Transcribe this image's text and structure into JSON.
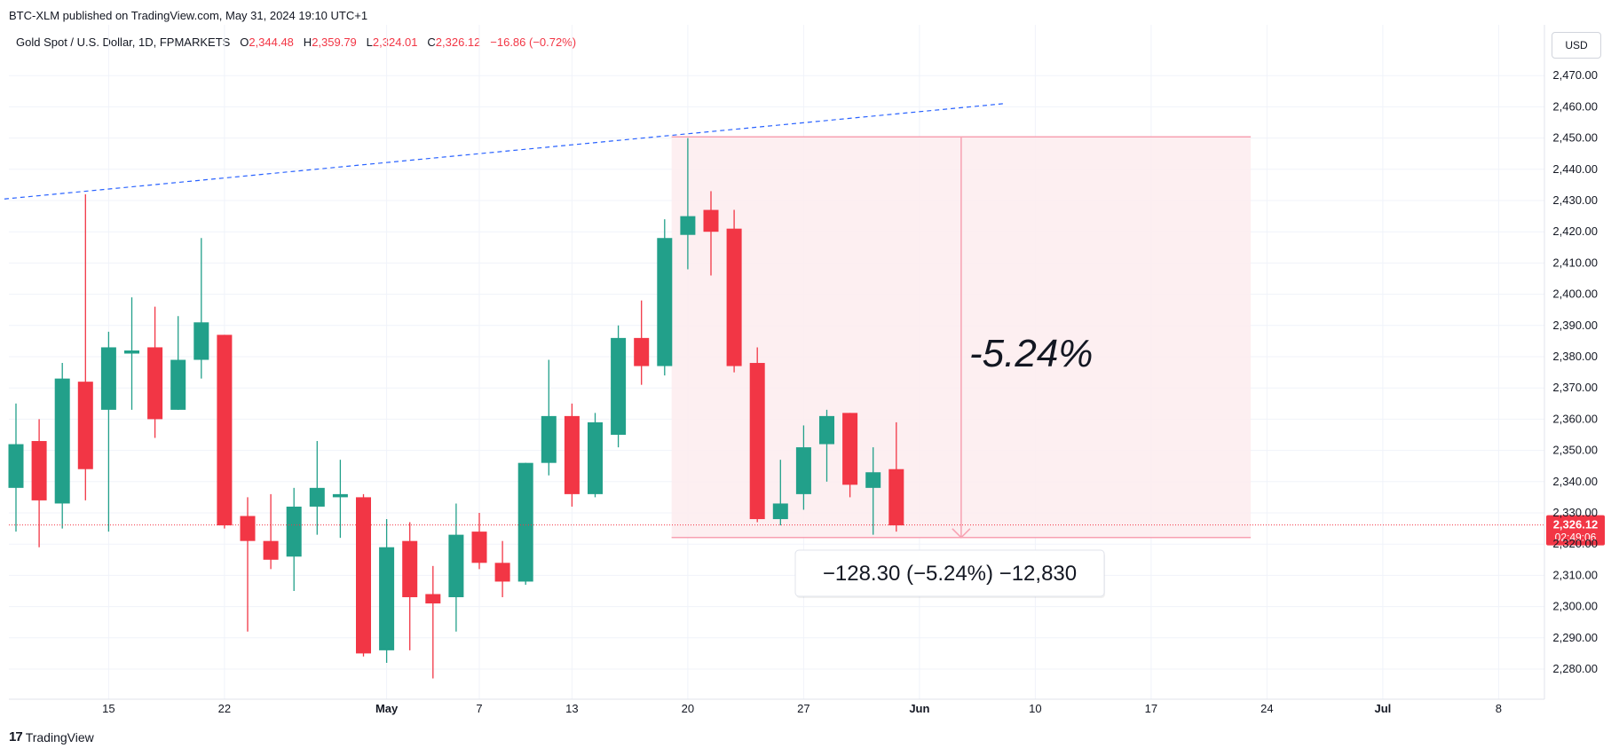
{
  "header": {
    "published": "BTC-XLM published on TradingView.com, May 31, 2024 19:10 UTC+1",
    "symbol": "Gold Spot / U.S. Dollar, 1D, FPMARKETS",
    "o_label": "O",
    "o_value": "2,344.48",
    "h_label": "H",
    "h_value": "2,359.79",
    "l_label": "L",
    "l_value": "2,324.01",
    "c_label": "C",
    "c_value": "2,326.12",
    "change": "−16.86 (−0.72%)"
  },
  "currency_button": "USD",
  "footer": {
    "logo": "17",
    "brand": "TradingView"
  },
  "colors": {
    "up": "#22a08a",
    "down": "#f23645",
    "trendline": "#2962ff",
    "measure_fill": "#fdecee",
    "measure_line": "#f7a1b2"
  },
  "price_badge": {
    "price": "2,326.12",
    "countdown": "02:49:06"
  },
  "measure": {
    "big_label": "-5.24%",
    "box_label": "−128.30 (−5.24%) −12,830"
  },
  "chart_data": {
    "type": "candlestick",
    "title": "Gold Spot / U.S. Dollar, 1D, FPMARKETS",
    "ylim": [
      2270,
      2480
    ],
    "y_ticks": [
      2280,
      2290,
      2300,
      2310,
      2320,
      2330,
      2340,
      2350,
      2360,
      2370,
      2380,
      2390,
      2400,
      2410,
      2420,
      2430,
      2440,
      2450,
      2460,
      2470
    ],
    "y_tick_labels": [
      "2,280.00",
      "2,290.00",
      "2,300.00",
      "2,310.00",
      "2,320.00",
      "2,330.00",
      "2,340.00",
      "2,350.00",
      "2,360.00",
      "2,370.00",
      "2,380.00",
      "2,390.00",
      "2,400.00",
      "2,410.00",
      "2,420.00",
      "2,430.00",
      "2,440.00",
      "2,450.00",
      "2,460.00",
      "2,470.00"
    ],
    "x_ticks": [
      "15",
      "22",
      "May",
      "7",
      "13",
      "20",
      "27",
      "Jun",
      "10",
      "17",
      "24",
      "Jul",
      "8"
    ],
    "x_tick_slots": [
      4,
      9,
      16,
      20,
      24,
      29,
      34,
      39,
      44,
      49,
      54,
      59,
      64
    ],
    "candles": [
      {
        "slot": 0,
        "o": 2338,
        "h": 2365,
        "l": 2324,
        "c": 2352
      },
      {
        "slot": 1,
        "o": 2353,
        "h": 2360,
        "l": 2319,
        "c": 2334
      },
      {
        "slot": 2,
        "o": 2333,
        "h": 2378,
        "l": 2325,
        "c": 2373
      },
      {
        "slot": 3,
        "o": 2372,
        "h": 2432,
        "l": 2334,
        "c": 2344
      },
      {
        "slot": 4,
        "o": 2363,
        "h": 2388,
        "l": 2324,
        "c": 2383
      },
      {
        "slot": 5,
        "o": 2381,
        "h": 2399,
        "l": 2363,
        "c": 2382
      },
      {
        "slot": 6,
        "o": 2383,
        "h": 2396,
        "l": 2354,
        "c": 2360
      },
      {
        "slot": 7,
        "o": 2363,
        "h": 2393,
        "l": 2363,
        "c": 2379
      },
      {
        "slot": 8,
        "o": 2379,
        "h": 2418,
        "l": 2373,
        "c": 2391
      },
      {
        "slot": 9,
        "o": 2387,
        "h": 2387,
        "l": 2325,
        "c": 2326
      },
      {
        "slot": 10,
        "o": 2329,
        "h": 2335,
        "l": 2292,
        "c": 2321
      },
      {
        "slot": 11,
        "o": 2321,
        "h": 2336,
        "l": 2312,
        "c": 2315
      },
      {
        "slot": 12,
        "o": 2316,
        "h": 2338,
        "l": 2305,
        "c": 2332
      },
      {
        "slot": 13,
        "o": 2332,
        "h": 2353,
        "l": 2323,
        "c": 2338
      },
      {
        "slot": 14,
        "o": 2335,
        "h": 2347,
        "l": 2322,
        "c": 2336
      },
      {
        "slot": 15,
        "o": 2335,
        "h": 2336,
        "l": 2284,
        "c": 2285
      },
      {
        "slot": 16,
        "o": 2286,
        "h": 2328,
        "l": 2282,
        "c": 2319
      },
      {
        "slot": 17,
        "o": 2321,
        "h": 2327,
        "l": 2286,
        "c": 2303
      },
      {
        "slot": 18,
        "o": 2304,
        "h": 2313,
        "l": 2277,
        "c": 2301
      },
      {
        "slot": 19,
        "o": 2303,
        "h": 2333,
        "l": 2292,
        "c": 2323
      },
      {
        "slot": 20,
        "o": 2324,
        "h": 2330,
        "l": 2312,
        "c": 2314
      },
      {
        "slot": 21,
        "o": 2314,
        "h": 2321,
        "l": 2303,
        "c": 2308
      },
      {
        "slot": 22,
        "o": 2308,
        "h": 2346,
        "l": 2307,
        "c": 2346
      },
      {
        "slot": 23,
        "o": 2346,
        "h": 2379,
        "l": 2342,
        "c": 2361
      },
      {
        "slot": 24,
        "o": 2361,
        "h": 2365,
        "l": 2332,
        "c": 2336
      },
      {
        "slot": 25,
        "o": 2336,
        "h": 2362,
        "l": 2335,
        "c": 2359
      },
      {
        "slot": 26,
        "o": 2355,
        "h": 2390,
        "l": 2351,
        "c": 2386
      },
      {
        "slot": 27,
        "o": 2386,
        "h": 2398,
        "l": 2371,
        "c": 2377
      },
      {
        "slot": 28,
        "o": 2377,
        "h": 2424,
        "l": 2374,
        "c": 2418
      },
      {
        "slot": 29,
        "o": 2419,
        "h": 2450,
        "l": 2408,
        "c": 2425
      },
      {
        "slot": 30,
        "o": 2427,
        "h": 2433,
        "l": 2406,
        "c": 2420
      },
      {
        "slot": 31,
        "o": 2421,
        "h": 2427,
        "l": 2375,
        "c": 2377
      },
      {
        "slot": 32,
        "o": 2378,
        "h": 2383,
        "l": 2327,
        "c": 2328
      },
      {
        "slot": 33,
        "o": 2328,
        "h": 2347,
        "l": 2326,
        "c": 2333
      },
      {
        "slot": 34,
        "o": 2336,
        "h": 2358,
        "l": 2331,
        "c": 2351
      },
      {
        "slot": 35,
        "o": 2352,
        "h": 2363,
        "l": 2340,
        "c": 2361
      },
      {
        "slot": 36,
        "o": 2362,
        "h": 2362,
        "l": 2335,
        "c": 2339
      },
      {
        "slot": 37,
        "o": 2338,
        "h": 2351,
        "l": 2323,
        "c": 2343
      },
      {
        "slot": 38,
        "o": 2344,
        "h": 2359,
        "l": 2324,
        "c": 2326
      }
    ],
    "current_price": 2326.12,
    "trendline": {
      "from": {
        "slot": -0.5,
        "price": 2430.5
      },
      "to": {
        "slot": 42.6,
        "price": 2461
      }
    },
    "measure_range": {
      "from_slot": 28.3,
      "to_slot": 53.3,
      "top": 2450.4,
      "bottom": 2322.1
    }
  }
}
